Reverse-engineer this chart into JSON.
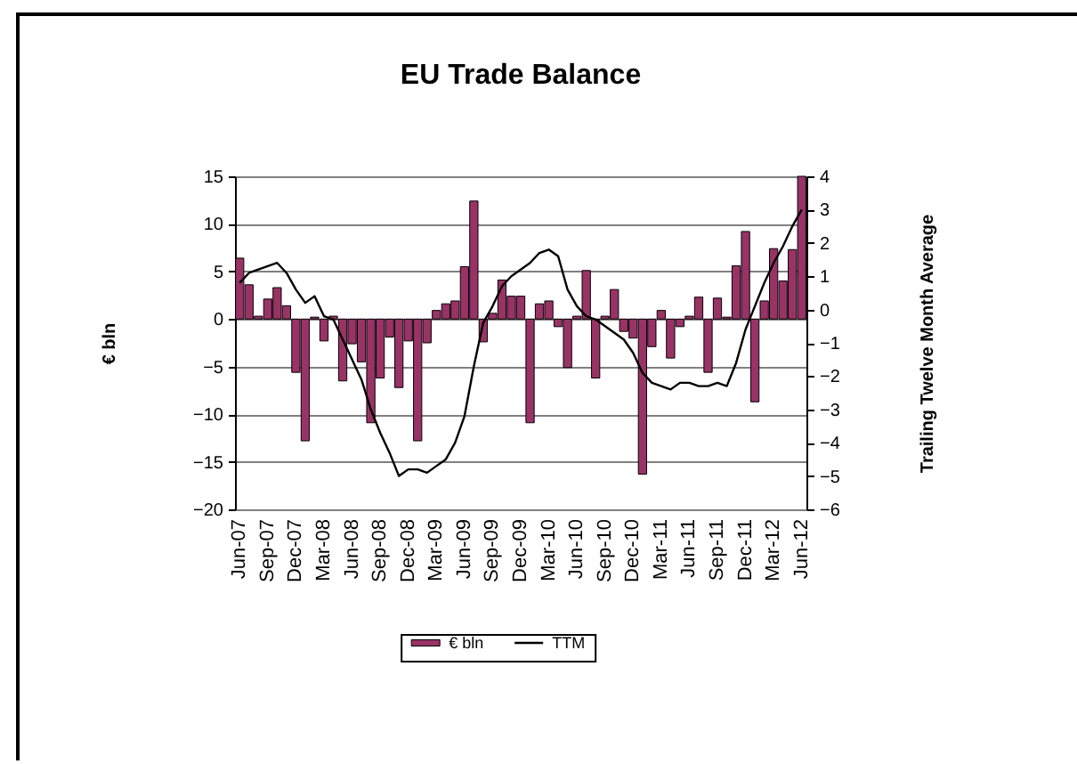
{
  "chart_data": {
    "type": "bar",
    "title": "EU Trade Balance",
    "ylabel": "€ bln",
    "y2label": "Trailing Twelve Month Average",
    "categories": [
      "Jun-07",
      null,
      null,
      "Sep-07",
      null,
      null,
      "Dec-07",
      null,
      null,
      "Mar-08",
      null,
      null,
      "Jun-08",
      null,
      null,
      "Sep-08",
      null,
      null,
      "Dec-08",
      null,
      null,
      "Mar-09",
      null,
      null,
      "Jun-09",
      null,
      null,
      "Sep-09",
      null,
      null,
      "Dec-09",
      null,
      null,
      "Mar-10",
      null,
      null,
      "Jun-10",
      null,
      null,
      "Sep-10",
      null,
      null,
      "Dec-10",
      null,
      null,
      "Mar-11",
      null,
      null,
      "Jun-11",
      null,
      null,
      "Sep-11",
      null,
      null,
      "Dec-11",
      null,
      null,
      "Mar-12",
      null,
      null,
      "Jun-12"
    ],
    "series": [
      {
        "name": "€ bln",
        "color": "#993366",
        "values": [
          6.4,
          3.6,
          0.3,
          2.1,
          3.3,
          1.4,
          -5.6,
          -12.8,
          0.2,
          -2.3,
          0.3,
          -6.5,
          -2.6,
          -4.5,
          -10.9,
          -6.2,
          -1.9,
          -7.2,
          -2.3,
          -12.8,
          -2.5,
          0.9,
          1.6,
          1.9,
          5.5,
          12.4,
          -2.4,
          0.6,
          4.1,
          2.4,
          2.4,
          -10.9,
          1.6,
          1.9,
          -0.8,
          -5.1,
          0.3,
          5.1,
          -6.2,
          0.3,
          3.1,
          -1.3,
          -2.0,
          -16.3,
          -2.9,
          0.9,
          -4.1,
          -0.8,
          0.3,
          2.3,
          -5.6,
          2.2,
          0.2,
          5.6,
          9.2,
          -8.7,
          1.9,
          7.4,
          4.0,
          7.3,
          15.0
        ]
      },
      {
        "name": "TTM",
        "type": "line",
        "axis": "y2",
        "color": "#000000",
        "values": [
          0.8,
          1.1,
          1.2,
          1.3,
          1.4,
          1.1,
          0.6,
          0.2,
          0.4,
          -0.2,
          -0.3,
          -0.9,
          -1.5,
          -2.1,
          -3.0,
          -3.7,
          -4.3,
          -5.0,
          -4.8,
          -4.8,
          -4.9,
          -4.7,
          -4.5,
          -4.0,
          -3.2,
          -1.7,
          -0.4,
          0.1,
          0.7,
          1.0,
          1.2,
          1.4,
          1.7,
          1.8,
          1.6,
          0.6,
          0.1,
          -0.2,
          -0.3,
          -0.5,
          -0.7,
          -0.9,
          -1.3,
          -1.9,
          -2.2,
          -2.3,
          -2.4,
          -2.2,
          -2.2,
          -2.3,
          -2.3,
          -2.2,
          -2.3,
          -1.6,
          -0.6,
          0.1,
          0.8,
          1.4,
          1.9,
          2.5,
          3.0
        ]
      }
    ],
    "ylim": [
      -20,
      15
    ],
    "yticks": [
      -20,
      -15,
      -10,
      -5,
      0,
      5,
      10,
      15
    ],
    "y2lim": [
      -6,
      4
    ],
    "y2ticks": [
      -6,
      -5,
      -4,
      -3,
      -2,
      -1,
      0,
      1,
      2,
      3,
      4
    ],
    "grid": "y",
    "legend": "bottom"
  }
}
